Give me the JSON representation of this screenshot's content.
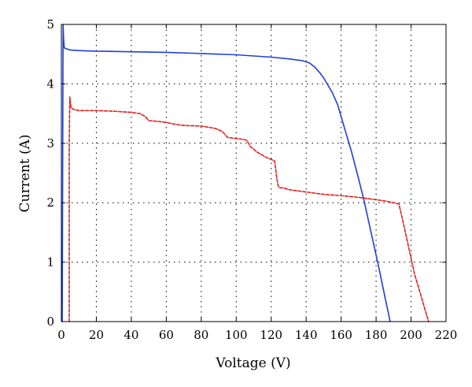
{
  "chart_data": {
    "type": "line",
    "title": "",
    "xlabel": "Voltage (V)",
    "ylabel": "Current (A)",
    "xlim": [
      0,
      220
    ],
    "ylim": [
      0,
      5
    ],
    "xticks": [
      0,
      20,
      40,
      60,
      80,
      100,
      120,
      140,
      160,
      180,
      200,
      220
    ],
    "yticks": [
      0,
      1,
      2,
      3,
      4,
      5
    ],
    "grid": true,
    "legend": "none",
    "series": [
      {
        "color": "#1f3fd8",
        "style": "solid",
        "x": [
          0.5,
          0.7,
          1.0,
          1.3,
          1.6,
          2,
          5,
          10,
          20,
          40,
          60,
          80,
          100,
          110,
          120,
          130,
          138,
          142,
          145,
          148,
          150,
          152,
          155,
          158,
          160,
          163,
          166,
          170,
          173,
          176,
          179,
          182,
          185,
          187,
          188
        ],
        "y": [
          0,
          2.5,
          5.0,
          4.75,
          4.62,
          4.6,
          4.57,
          4.56,
          4.55,
          4.54,
          4.53,
          4.51,
          4.49,
          4.47,
          4.45,
          4.42,
          4.39,
          4.35,
          4.28,
          4.18,
          4.1,
          4.0,
          3.85,
          3.65,
          3.45,
          3.15,
          2.85,
          2.4,
          2.05,
          1.65,
          1.25,
          0.85,
          0.42,
          0.15,
          0
        ]
      },
      {
        "color": "#e02020",
        "style": "dashed",
        "x": [
          4.5,
          4.5,
          4.8,
          5.5,
          7,
          10,
          20,
          30,
          40,
          45,
          48,
          50,
          55,
          60,
          65,
          70,
          80,
          88,
          92,
          95,
          100,
          103,
          106,
          108,
          112,
          118,
          120,
          122,
          123,
          124,
          125,
          127,
          130,
          140,
          145,
          150,
          160,
          170,
          180,
          185,
          190,
          193,
          196,
          199,
          202,
          205,
          208,
          210
        ],
        "y": [
          0,
          3.0,
          3.78,
          3.6,
          3.57,
          3.55,
          3.55,
          3.54,
          3.52,
          3.5,
          3.45,
          3.38,
          3.37,
          3.35,
          3.32,
          3.3,
          3.29,
          3.25,
          3.2,
          3.1,
          3.08,
          3.07,
          3.05,
          2.95,
          2.85,
          2.75,
          2.73,
          2.7,
          2.45,
          2.28,
          2.25,
          2.25,
          2.22,
          2.18,
          2.16,
          2.14,
          2.12,
          2.09,
          2.05,
          2.03,
          2.0,
          1.98,
          1.6,
          1.2,
          0.8,
          0.5,
          0.2,
          0.0
        ]
      }
    ]
  }
}
